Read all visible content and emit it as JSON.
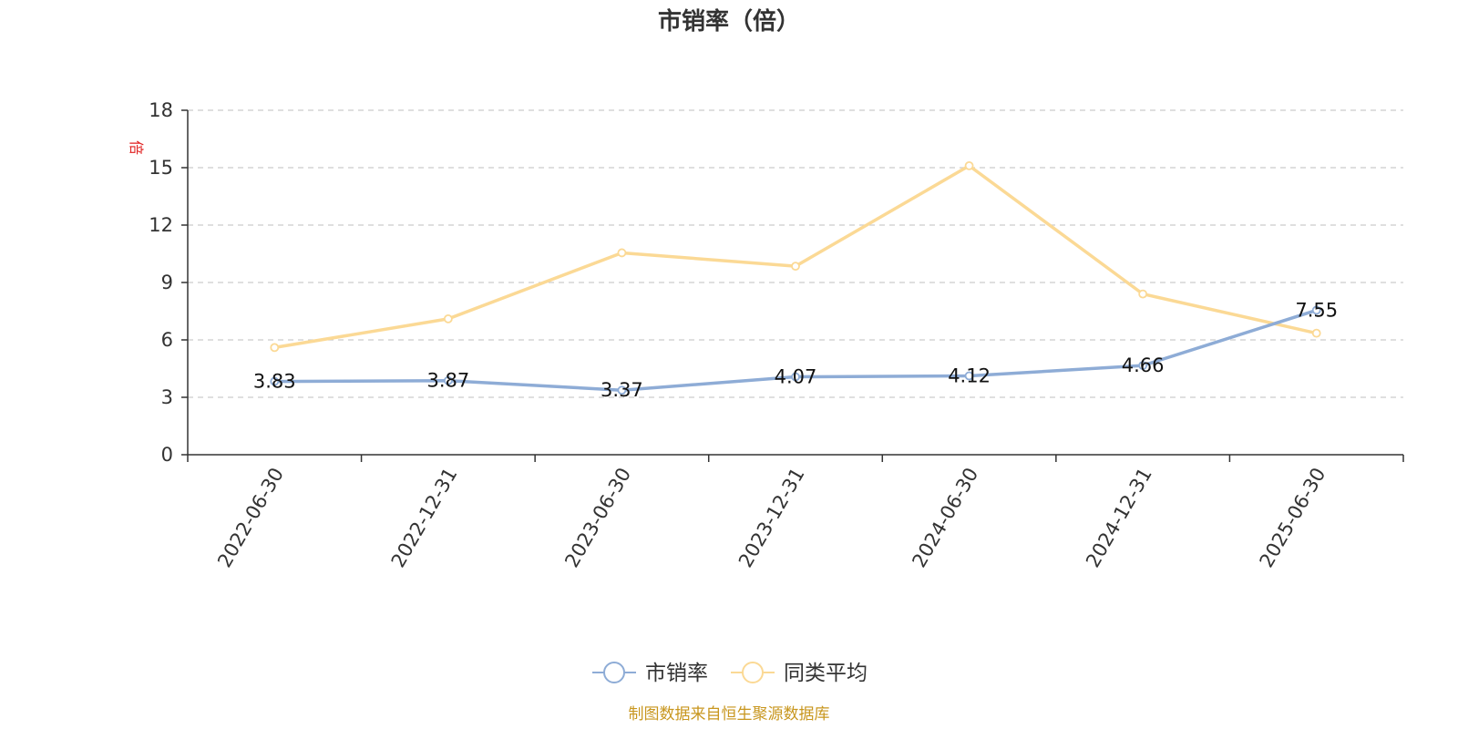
{
  "chart_data": {
    "type": "line",
    "title": "市销率（倍）",
    "ylabel": "倍",
    "xlabel": "",
    "categories": [
      "2022-06-30",
      "2022-12-31",
      "2023-06-30",
      "2023-12-31",
      "2024-06-30",
      "2024-12-31",
      "2025-06-30"
    ],
    "ylim": [
      0,
      18
    ],
    "yticks": [
      0,
      3,
      6,
      9,
      12,
      15,
      18
    ],
    "grid": true,
    "legend_position": "bottom-center",
    "series": [
      {
        "name": "市销率",
        "values": [
          3.83,
          3.87,
          3.37,
          4.07,
          4.12,
          4.66,
          7.55
        ],
        "data_labels": [
          "3.83",
          "3.87",
          "3.37",
          "4.07",
          "4.12",
          "4.66",
          "7.55"
        ],
        "color": "#8eacd6"
      },
      {
        "name": "同类平均",
        "values": [
          5.6,
          7.1,
          10.55,
          9.85,
          15.1,
          8.4,
          6.35
        ],
        "color": "#fbd995"
      }
    ]
  },
  "source": "制图数据来自恒生聚源数据库"
}
